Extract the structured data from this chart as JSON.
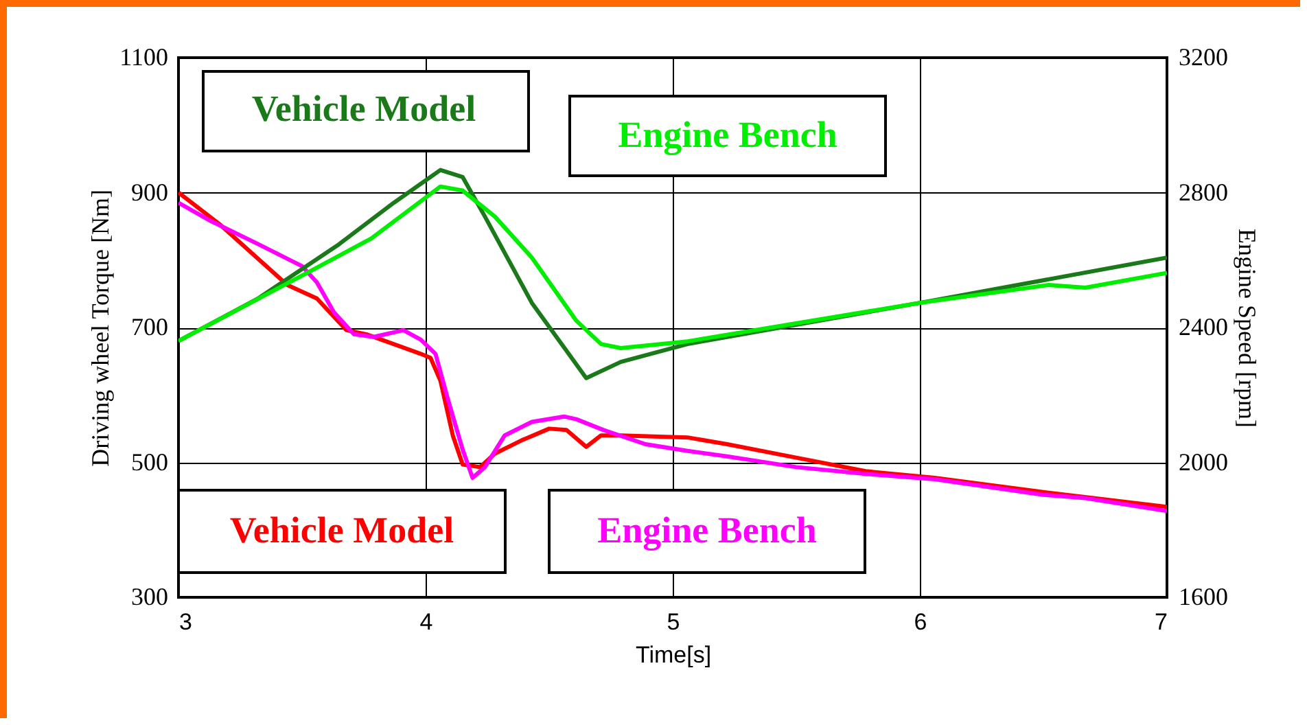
{
  "chart_data": {
    "type": "line",
    "xlabel": "Time[s]",
    "ylabel": "Driving wheel Torque [Nm]",
    "y2label": "Engine Speed [rpm]",
    "xlim": [
      3,
      7
    ],
    "xticks": [
      3,
      4,
      5,
      6,
      7
    ],
    "ylim": [
      300,
      1100
    ],
    "yticks": [
      300,
      500,
      700,
      900,
      1100
    ],
    "y2lim": [
      1600,
      3200
    ],
    "y2ticks": [
      1600,
      2000,
      2400,
      2800,
      3200
    ],
    "grid": true,
    "legend": false,
    "line_style": "solid",
    "series": [
      {
        "name": "Vehicle Model",
        "color": "#ff0000",
        "x": [
          3,
          3.17,
          3.44,
          3.56,
          3.68,
          3.76,
          3.98,
          4.02,
          4.06,
          4.11,
          4.15,
          4.22,
          4.28,
          4.39,
          4.5,
          4.57,
          4.65,
          4.71,
          4.79,
          5.06,
          5.22,
          5.5,
          5.78,
          6.06,
          6.5,
          7
        ],
        "values": [
          900,
          852,
          763,
          743,
          696,
          690,
          661,
          655,
          621,
          540,
          497,
          493,
          513,
          533,
          550,
          548,
          523,
          540,
          540,
          537,
          527,
          507,
          487,
          477,
          456,
          434
        ]
      },
      {
        "name": "Engine Bench",
        "color": "#ff00ff",
        "x": [
          3,
          3.13,
          3.32,
          3.5,
          3.56,
          3.63,
          3.71,
          3.79,
          3.91,
          3.98,
          4.04,
          4.09,
          4.15,
          4.19,
          4.24,
          4.32,
          4.43,
          4.56,
          4.61,
          4.72,
          4.89,
          5.06,
          5.22,
          5.5,
          5.78,
          6.06,
          6.5,
          6.67,
          7
        ],
        "values": [
          885,
          858,
          824,
          791,
          767,
          722,
          690,
          686,
          696,
          682,
          661,
          594,
          519,
          477,
          493,
          540,
          560,
          568,
          564,
          548,
          527,
          517,
          509,
          493,
          483,
          475,
          452,
          447,
          428
        ]
      },
      {
        "name": "Vehicle Model",
        "color": "#1a7a1a",
        "axis": "y2",
        "x": [
          3,
          3.32,
          3.65,
          3.87,
          4.06,
          4.15,
          4.24,
          4.43,
          4.65,
          4.79,
          5.06,
          6,
          7
        ],
        "values": [
          2360,
          2485,
          2647,
          2769,
          2867,
          2846,
          2729,
          2473,
          2250,
          2298,
          2351,
          2473,
          2607
        ]
      },
      {
        "name": "Engine Bench",
        "color": "#00ee00",
        "axis": "y2",
        "x": [
          3,
          3.5,
          3.78,
          4.06,
          4.15,
          4.28,
          4.43,
          4.61,
          4.71,
          4.79,
          5.06,
          6,
          6.52,
          6.67,
          7
        ],
        "values": [
          2360,
          2554,
          2664,
          2818,
          2806,
          2729,
          2607,
          2420,
          2351,
          2339,
          2359,
          2473,
          2526,
          2518,
          2562
        ]
      }
    ]
  }
}
